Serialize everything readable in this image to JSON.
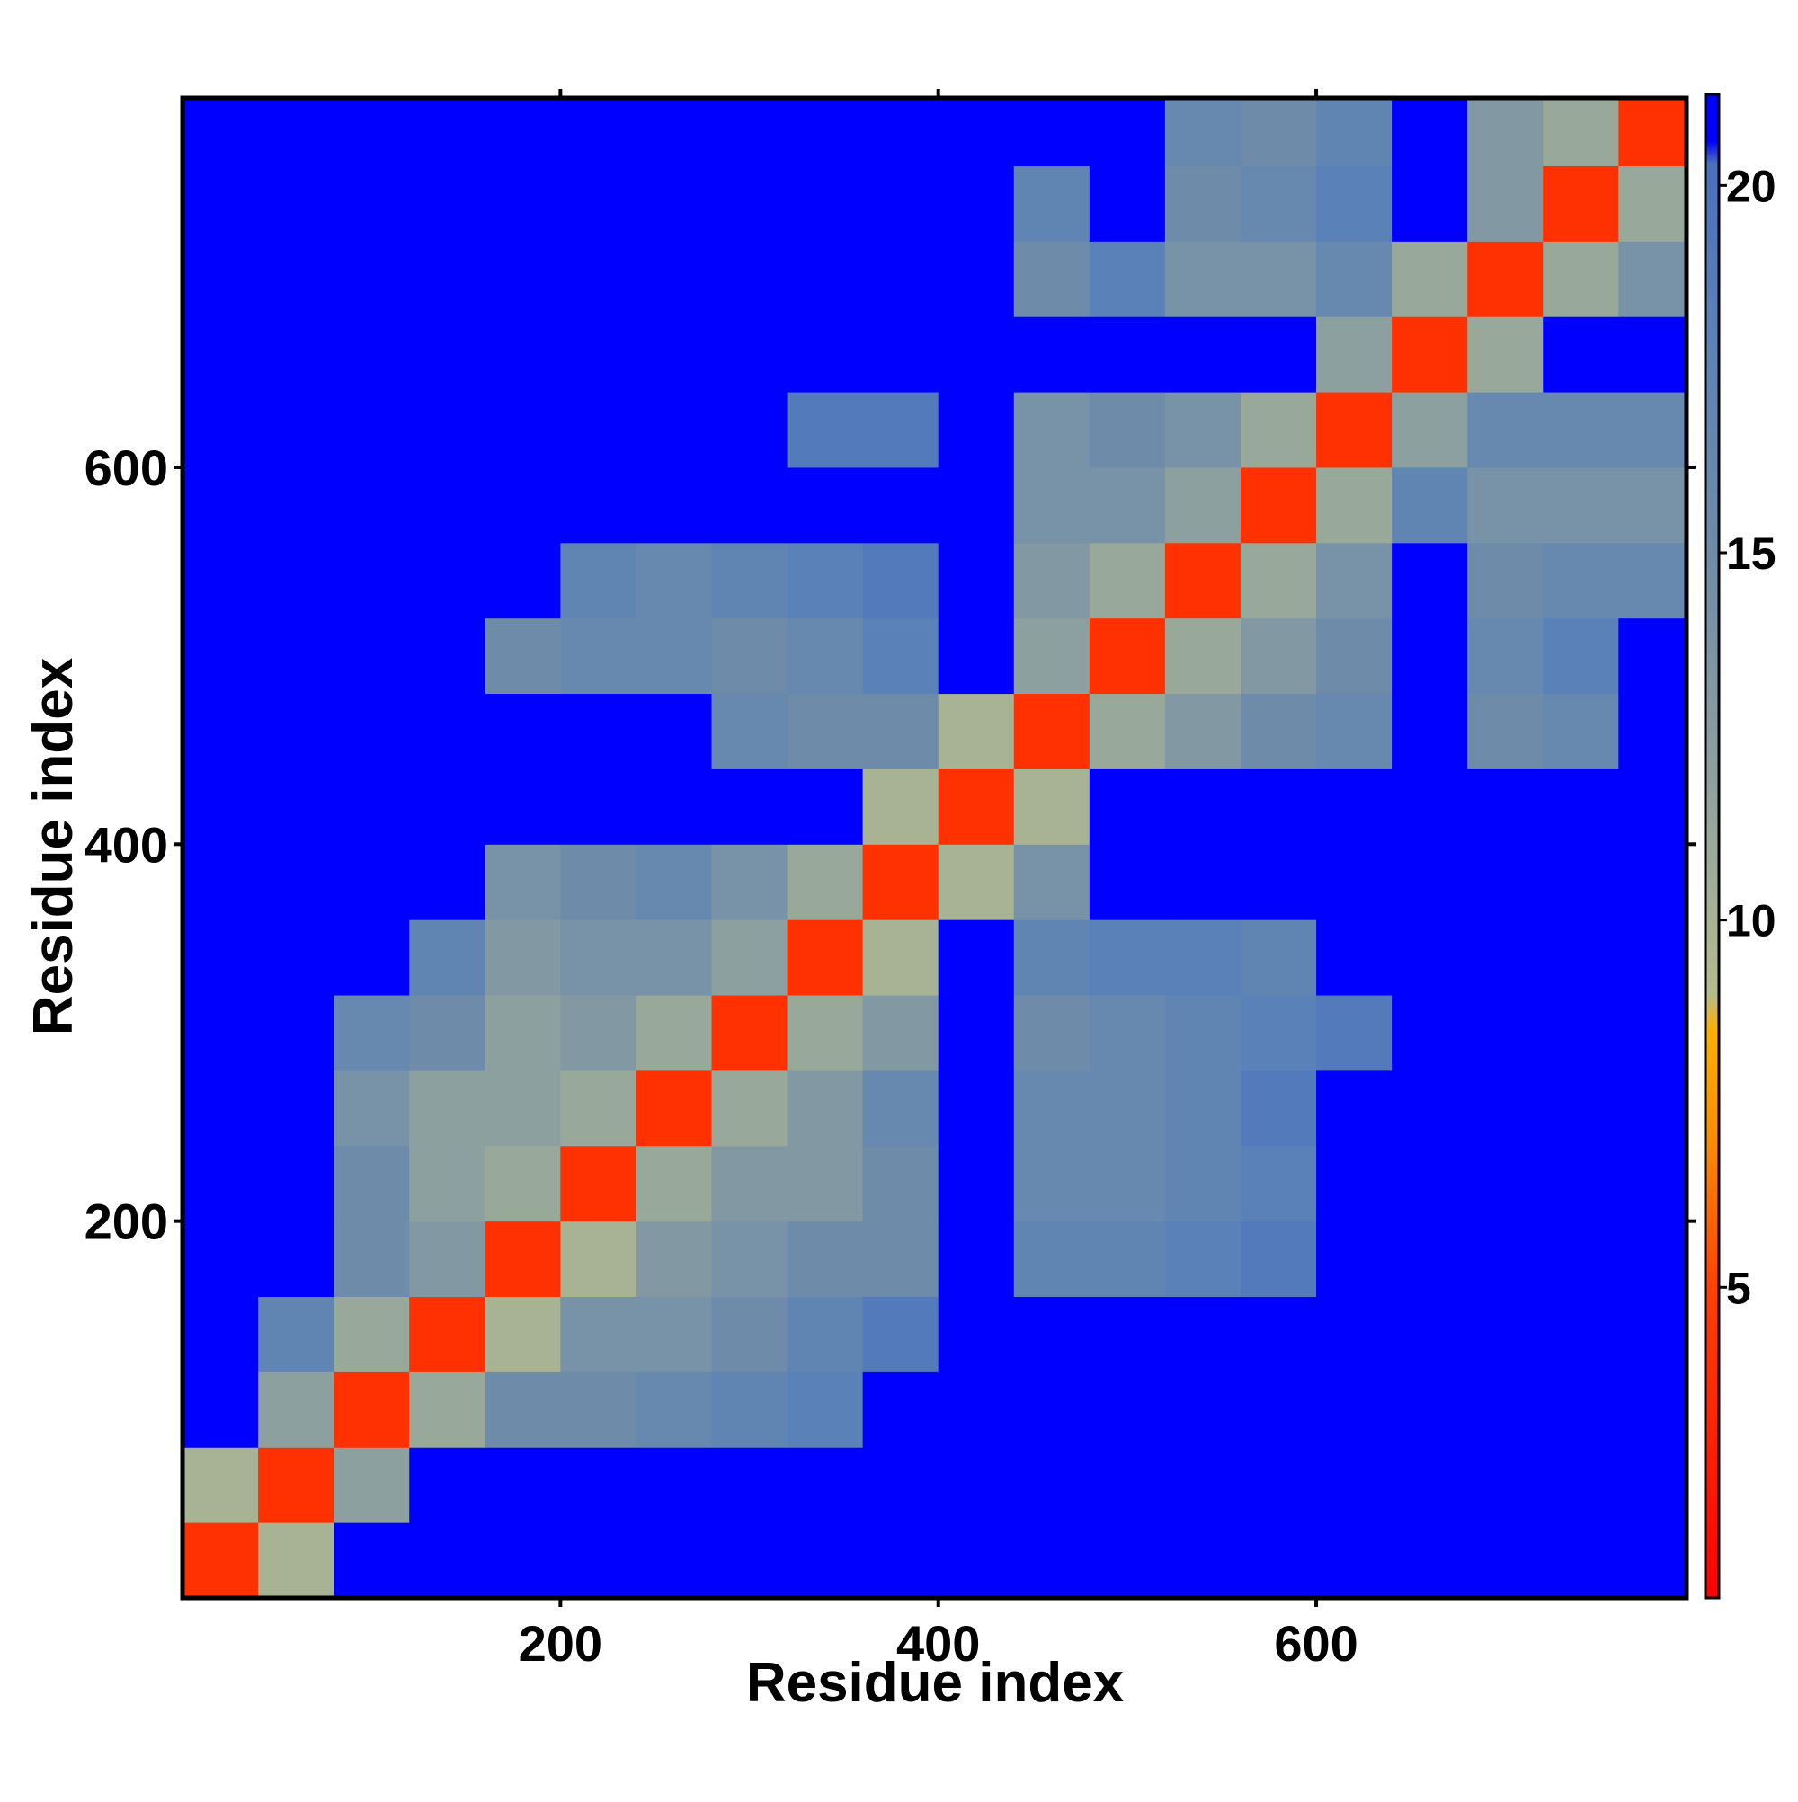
{
  "chart_data": {
    "type": "heatmap",
    "xlabel": "Residue index",
    "ylabel": "Residue index",
    "bins": [
      0,
      40,
      80,
      120,
      160,
      200,
      240,
      280,
      320,
      360,
      400,
      440,
      480,
      520,
      560,
      600,
      640,
      680,
      720,
      760,
      796
    ],
    "values": [
      [
        4,
        10,
        21,
        21,
        21,
        21,
        21,
        21,
        21,
        21,
        21,
        21,
        21,
        21,
        21,
        21,
        21,
        21,
        21,
        21
      ],
      [
        10,
        4,
        12,
        21,
        21,
        21,
        21,
        21,
        21,
        21,
        21,
        21,
        21,
        21,
        21,
        21,
        21,
        21,
        21,
        21
      ],
      [
        21,
        12,
        4,
        11,
        15,
        15,
        16,
        17,
        18,
        21,
        21,
        21,
        21,
        21,
        21,
        21,
        21,
        21,
        21,
        21
      ],
      [
        21,
        17,
        11,
        4,
        10,
        14,
        14,
        15,
        17,
        19,
        21,
        21,
        21,
        21,
        21,
        21,
        21,
        21,
        21,
        21
      ],
      [
        21,
        21,
        15,
        13,
        4,
        10,
        13,
        14,
        15,
        15,
        21,
        17,
        17,
        18,
        19,
        21,
        21,
        21,
        21,
        21
      ],
      [
        21,
        21,
        15,
        12,
        11,
        4,
        11,
        13,
        13,
        15,
        21,
        16,
        16,
        17,
        18,
        21,
        21,
        21,
        21,
        21
      ],
      [
        21,
        21,
        14,
        12,
        12,
        11,
        4,
        11,
        13,
        16,
        21,
        16,
        16,
        17,
        19,
        21,
        21,
        21,
        21,
        21
      ],
      [
        21,
        21,
        16,
        15,
        12,
        13,
        11,
        4,
        11,
        13,
        21,
        15,
        16,
        17,
        18,
        19,
        21,
        21,
        21,
        21
      ],
      [
        21,
        21,
        21,
        17,
        13,
        14,
        14,
        12,
        4,
        10,
        21,
        17,
        18,
        18,
        17,
        21,
        21,
        21,
        21,
        21
      ],
      [
        21,
        21,
        21,
        21,
        14,
        15,
        16,
        14,
        11,
        4,
        10,
        14,
        21,
        21,
        21,
        21,
        21,
        21,
        21,
        21
      ],
      [
        21,
        21,
        21,
        21,
        21,
        21,
        21,
        21,
        21,
        10,
        4,
        10,
        21,
        21,
        21,
        21,
        21,
        21,
        21,
        21
      ],
      [
        21,
        21,
        21,
        21,
        21,
        21,
        21,
        16,
        15,
        15,
        10,
        4,
        11,
        13,
        15,
        16,
        21,
        15,
        16,
        21
      ],
      [
        21,
        21,
        21,
        21,
        15,
        16,
        16,
        15,
        16,
        18,
        21,
        12,
        4,
        11,
        13,
        15,
        21,
        16,
        18,
        21
      ],
      [
        21,
        21,
        21,
        21,
        21,
        17,
        16,
        17,
        18,
        19,
        21,
        13,
        11,
        4,
        11,
        14,
        21,
        15,
        16,
        16
      ],
      [
        21,
        21,
        21,
        21,
        21,
        21,
        21,
        21,
        21,
        21,
        21,
        14,
        14,
        12,
        4,
        11,
        17,
        14,
        14,
        14
      ],
      [
        21,
        21,
        21,
        21,
        21,
        21,
        21,
        21,
        19,
        19,
        21,
        14,
        15,
        14,
        11,
        4,
        12,
        16,
        16,
        16
      ],
      [
        21,
        21,
        21,
        21,
        21,
        21,
        21,
        21,
        21,
        21,
        21,
        21,
        21,
        21,
        21,
        12,
        4,
        11,
        21,
        21
      ],
      [
        21,
        21,
        21,
        21,
        21,
        21,
        21,
        21,
        21,
        21,
        21,
        15,
        18,
        14,
        14,
        16,
        11,
        4,
        11,
        14
      ],
      [
        21,
        21,
        21,
        21,
        21,
        21,
        21,
        21,
        21,
        21,
        21,
        17,
        21,
        15,
        16,
        18,
        21,
        13,
        4,
        11
      ],
      [
        21,
        21,
        21,
        21,
        21,
        21,
        21,
        21,
        21,
        21,
        21,
        21,
        21,
        16,
        15,
        17,
        21,
        13,
        11,
        4
      ]
    ],
    "xlim": [
      0,
      796
    ],
    "ylim": [
      0,
      796
    ],
    "xticks": [
      200,
      400,
      600
    ],
    "yticks": [
      200,
      400,
      600
    ],
    "clim": [
      0.77,
      21.24
    ],
    "cticks": [
      5,
      10,
      15,
      20
    ],
    "colorscale": [
      [
        0.77,
        "#ff0000"
      ],
      [
        5,
        "#ff4000"
      ],
      [
        7,
        "#ff8c00"
      ],
      [
        8.5,
        "#ffb000"
      ],
      [
        9,
        "#b4bc8c"
      ],
      [
        12,
        "#8ca0a0"
      ],
      [
        15,
        "#6e8caa"
      ],
      [
        18,
        "#5a82b8"
      ],
      [
        20.3,
        "#4a70c0"
      ],
      [
        20.6,
        "#0000ff"
      ],
      [
        21.24,
        "#0000ff"
      ]
    ]
  }
}
